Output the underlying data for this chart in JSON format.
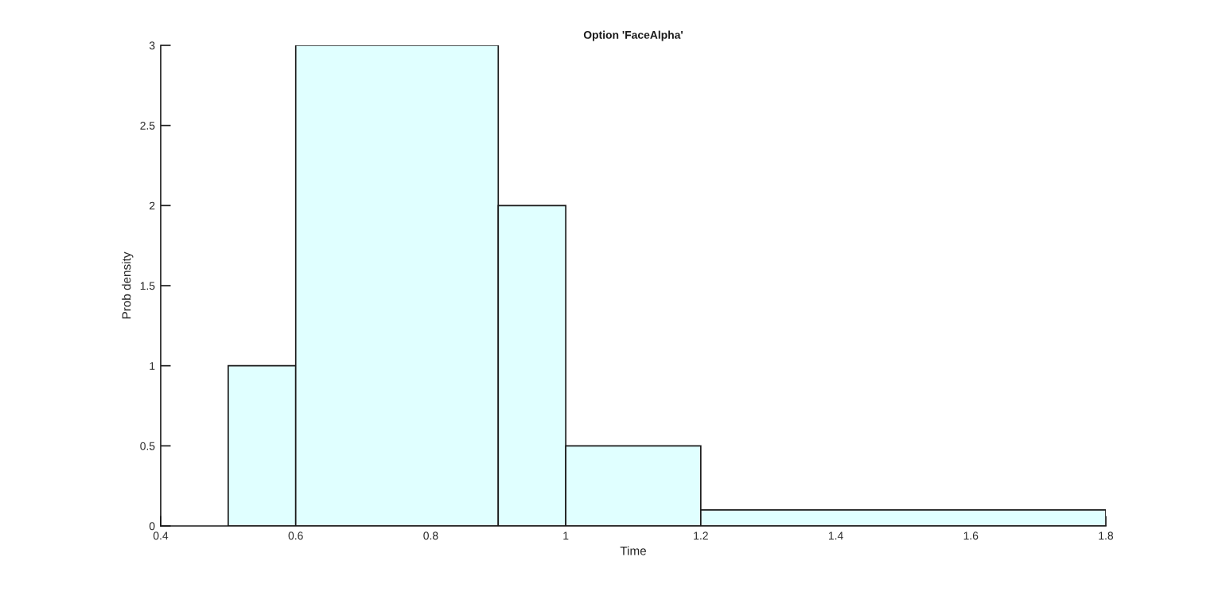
{
  "chart_data": {
    "type": "histogram",
    "title": "Option 'FaceAlpha'",
    "xlabel": "Time",
    "ylabel": "Prob density",
    "bins": [
      0.5,
      0.6,
      0.9,
      1.0,
      1.2,
      1.8
    ],
    "values": [
      1,
      3,
      2,
      0.5,
      0.1
    ],
    "color": "#e0ffff",
    "xlim": [
      0.4,
      1.8
    ],
    "ylim": [
      0,
      3
    ],
    "xticks": [
      0.4,
      0.6,
      0.8,
      1,
      1.2,
      1.4,
      1.6,
      1.8
    ],
    "yticks": [
      0,
      0.5,
      1,
      1.5,
      2,
      2.5,
      3
    ],
    "grid": false
  }
}
